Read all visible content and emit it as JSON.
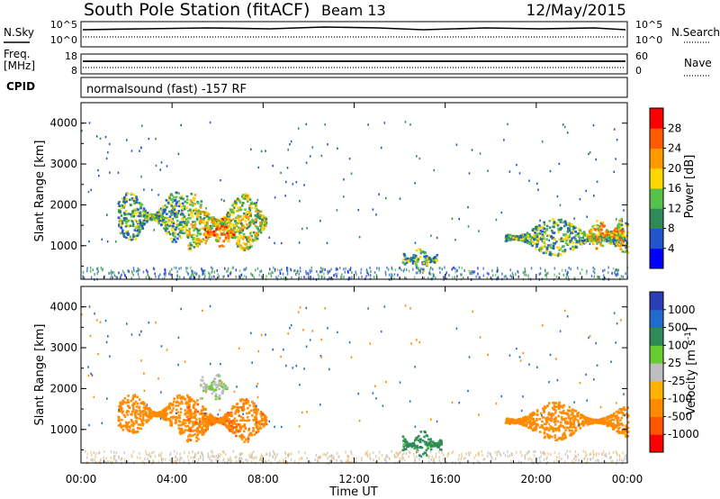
{
  "header": {
    "station": "South Pole Station (fitACF)",
    "beam": "Beam 13",
    "date": "12/May/2015"
  },
  "params": {
    "nsky_label": "N.Sky",
    "nsearch_label": "N.Search",
    "noise_ticks": [
      "10^5",
      "10^0"
    ],
    "freq_label_1": "Freq.",
    "freq_label_2": "[MHz]",
    "freq_ticks": [
      "18",
      "8"
    ],
    "nave_label": "Nave",
    "nave_ticks": [
      "60",
      "0"
    ],
    "cpid_label": "CPID",
    "cpid_text": "normalsound (fast) -157 RF"
  },
  "colors": {
    "power": [
      "#0000ff",
      "#2255cc",
      "#2e8b57",
      "#57c24a",
      "#ffd700",
      "#ff9900",
      "#ff5a00",
      "#ff0000"
    ],
    "velocity": [
      "#ff0000",
      "#ff5500",
      "#ff8a00",
      "#ffb300",
      "#bebebe",
      "#66cc33",
      "#2e8b57",
      "#1f6ccc",
      "#2a3fb5"
    ]
  },
  "chart_data": [
    {
      "type": "heatmap",
      "panel": "power",
      "xlabel": "",
      "ylabel": "Slant Range [km]",
      "yticks": [
        "1000",
        "2000",
        "3000",
        "4000"
      ],
      "ylim": [
        180,
        4500
      ],
      "xlim_hours": [
        0,
        24
      ],
      "colorbar": {
        "label": "Power [dB]",
        "ticks": [
          "4",
          "8",
          "12",
          "16",
          "20",
          "24",
          "28"
        ],
        "range": [
          0,
          30
        ]
      },
      "regions": [
        {
          "t0": 1.6,
          "t1": 4.6,
          "r0": 1100,
          "r1": 2350,
          "level": 12
        },
        {
          "t0": 4.6,
          "t1": 8.1,
          "r0": 900,
          "r1": 2300,
          "level": 16
        },
        {
          "t0": 5.3,
          "t1": 6.7,
          "r0": 950,
          "r1": 1700,
          "level": 22
        },
        {
          "t0": 14.1,
          "t1": 15.6,
          "r0": 350,
          "r1": 1000,
          "level": 12
        },
        {
          "t0": 18.6,
          "t1": 24.0,
          "r0": 750,
          "r1": 1700,
          "level": 12
        },
        {
          "t0": 22.2,
          "t1": 23.8,
          "r0": 900,
          "r1": 1700,
          "level": 20
        },
        {
          "t0": 0.0,
          "t1": 24.0,
          "r0": 200,
          "r1": 500,
          "level": 8
        }
      ]
    },
    {
      "type": "heatmap",
      "panel": "velocity",
      "xlabel": "Time UT",
      "ylabel": "Slant Range [km]",
      "yticks": [
        "1000",
        "2000",
        "3000",
        "4000"
      ],
      "ylim": [
        180,
        4500
      ],
      "xlim_hours": [
        0,
        24
      ],
      "xticks": [
        "00:00",
        "04:00",
        "08:00",
        "12:00",
        "16:00",
        "20:00",
        "00:00"
      ],
      "colorbar": {
        "label": "Velocity [m s^-1]",
        "ticks": [
          "-1000",
          "-500",
          "-100",
          "-25",
          "25",
          "100",
          "500",
          "1000"
        ]
      },
      "regions": [
        {
          "t0": 1.6,
          "t1": 5.0,
          "r0": 900,
          "r1": 1900,
          "level": -200
        },
        {
          "t0": 4.6,
          "t1": 8.1,
          "r0": 700,
          "r1": 1800,
          "level": -400
        },
        {
          "t0": 5.2,
          "t1": 6.4,
          "r0": 1700,
          "r1": 2400,
          "level": 10
        },
        {
          "t0": 14.1,
          "t1": 15.8,
          "r0": 300,
          "r1": 1000,
          "level": 150
        },
        {
          "t0": 18.6,
          "t1": 24.0,
          "r0": 750,
          "r1": 1700,
          "level": -200
        },
        {
          "t0": 0.0,
          "t1": 24.0,
          "r0": 200,
          "r1": 500,
          "level": -40
        }
      ]
    }
  ]
}
